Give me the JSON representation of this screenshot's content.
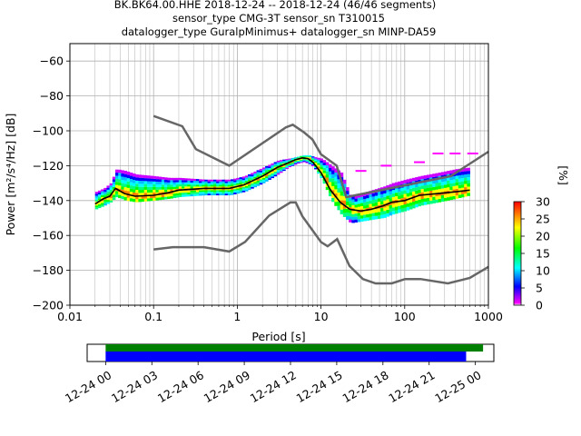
{
  "title_lines": [
    "BK.BK64.00.HHE   2018-12-24 -- 2018-12-24  (46/46 segments)",
    "sensor_type CMG-3T sensor_sn T310015",
    "datalogger_type GuralpMinimus+ datalogger_sn MINP-DA59"
  ],
  "chart_data": [
    {
      "type": "heatmap",
      "subtype": "PPSD (probabilistic power spectral density)",
      "xlabel": "Period [s]",
      "ylabel": "Power [m²/s⁴/Hz] [dB]",
      "x_scale": "log",
      "xlim": [
        0.01,
        1000
      ],
      "ylim": [
        -200,
        -50
      ],
      "x_tick_labels": [
        "0.01",
        "0.1",
        "1",
        "10",
        "100",
        "1000"
      ],
      "x_tick_values": [
        0.01,
        0.1,
        1,
        10,
        100,
        1000
      ],
      "y_ticks": [
        -200,
        -180,
        -160,
        -140,
        -120,
        -100,
        -80,
        -60
      ],
      "grid": true,
      "colorbar": {
        "label": "[%]",
        "range": [
          0,
          30
        ],
        "ticks": [
          0,
          5,
          10,
          15,
          20,
          25,
          30
        ],
        "colors": [
          "#ffffff",
          "#ff00ff",
          "#0000ff",
          "#00ffff",
          "#00ff00",
          "#ffff00",
          "#ff0000"
        ]
      },
      "noise_models": {
        "color": "#666666",
        "NHNM": {
          "period": [
            0.1,
            0.22,
            0.32,
            0.8,
            3.8,
            4.6,
            6.3,
            7.9,
            10,
            15.4,
            20,
            354.8,
            1000
          ],
          "power": [
            -91.5,
            -97.4,
            -110.5,
            -120,
            -98,
            -96.5,
            -101,
            -105,
            -113.5,
            -120,
            -138,
            -126,
            -112
          ]
        },
        "NLNM": {
          "period": [
            0.1,
            0.17,
            0.4,
            0.8,
            1.24,
            2.4,
            4.3,
            5,
            6,
            10,
            12,
            15.6,
            21.9,
            31.6,
            45,
            70,
            101,
            154,
            328,
            600,
            1000
          ],
          "power": [
            -168,
            -166.7,
            -166.7,
            -169.2,
            -163.7,
            -148.6,
            -141.1,
            -141.1,
            -149,
            -163.8,
            -166.2,
            -162.1,
            -177.5,
            -185,
            -187.5,
            -187.5,
            -185,
            -185,
            -187.5,
            -184.4,
            -178
          ]
        }
      },
      "median_line": {
        "color": "#000000",
        "period": [
          0.02,
          0.025,
          0.03,
          0.035,
          0.045,
          0.06,
          0.1,
          0.15,
          0.2,
          0.4,
          0.8,
          1.2,
          2,
          3,
          4,
          5,
          6,
          7,
          8,
          10,
          13,
          17,
          22,
          30,
          40,
          55,
          70,
          100,
          150,
          250,
          400,
          600
        ],
        "power": [
          -142,
          -139,
          -137.5,
          -133,
          -136,
          -137.5,
          -137,
          -135.5,
          -134,
          -133,
          -133,
          -131,
          -126,
          -121,
          -118.5,
          -116.5,
          -115.5,
          -116,
          -118,
          -124,
          -134,
          -141,
          -145,
          -146,
          -145,
          -143,
          -141,
          -140,
          -137,
          -136,
          -135,
          -134
        ]
      },
      "density_upper_edge": {
        "period": [
          0.02,
          0.025,
          0.03,
          0.035,
          0.045,
          0.06,
          0.1,
          0.15,
          0.2,
          0.4,
          0.8,
          1.2,
          2,
          3,
          4,
          5,
          6,
          7,
          8,
          10,
          13,
          17,
          22,
          30,
          40,
          55,
          70,
          100,
          150,
          250,
          400,
          600
        ],
        "power": [
          -135,
          -133,
          -130,
          -122,
          -123,
          -125,
          -126,
          -127,
          -127,
          -128,
          -128,
          -126,
          -121,
          -117,
          -116,
          -115,
          -114,
          -114,
          -115,
          -116,
          -120,
          -124,
          -138,
          -136,
          -134,
          -132,
          -130,
          -128,
          -126,
          -124,
          -122,
          -121
        ]
      },
      "density_lower_edge": {
        "period": [
          0.02,
          0.025,
          0.03,
          0.035,
          0.045,
          0.06,
          0.1,
          0.15,
          0.2,
          0.4,
          0.8,
          1.2,
          2,
          3,
          4,
          5,
          6,
          7,
          8,
          10,
          13,
          17,
          22,
          30,
          40,
          55,
          70,
          100,
          150,
          250,
          400,
          600
        ],
        "power": [
          -145,
          -143,
          -141,
          -138,
          -140,
          -141,
          -140,
          -139,
          -138,
          -137,
          -137,
          -135,
          -130,
          -125,
          -121,
          -119,
          -118,
          -119,
          -121,
          -128,
          -140,
          -148,
          -153,
          -152,
          -151,
          -150,
          -148,
          -146,
          -143,
          -141,
          -139,
          -137
        ]
      },
      "sparse_marks": [
        {
          "period": 250,
          "power": -113
        },
        {
          "period": 400,
          "power": -113
        },
        {
          "period": 650,
          "power": -113
        },
        {
          "period": 150,
          "power": -118
        },
        {
          "period": 60,
          "power": -120
        },
        {
          "period": 30,
          "power": -123
        }
      ]
    },
    {
      "type": "timeline",
      "xlabel": "",
      "tick_labels": [
        "12-24 00",
        "12-24 03",
        "12-24 06",
        "12-24 09",
        "12-24 12",
        "12-24 15",
        "12-24 18",
        "12-24 21",
        "12-25 00"
      ],
      "tick_hours": [
        0,
        3,
        6,
        9,
        12,
        15,
        18,
        21,
        24
      ],
      "xlim_hours": [
        -1.2,
        25.2
      ],
      "bars": [
        {
          "label": "",
          "color": "#008000",
          "start_hour": 0,
          "end_hour": 24.5
        },
        {
          "label": "",
          "color": "#0000ff",
          "start_hour": 0,
          "end_hour": 23.4
        }
      ]
    }
  ]
}
